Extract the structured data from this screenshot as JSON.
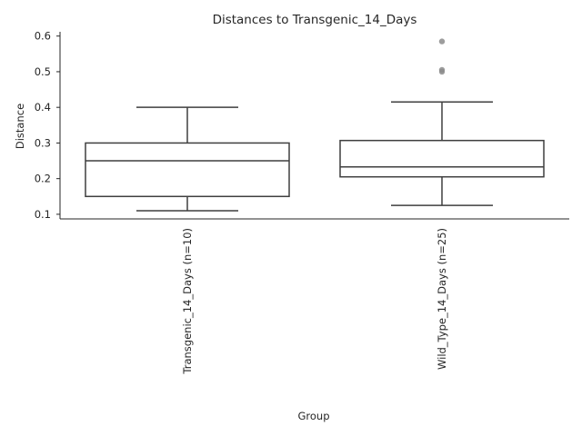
{
  "chart_data": {
    "type": "box",
    "title": "Distances to Transgenic_14_Days",
    "xlabel": "Group",
    "ylabel": "Distance",
    "ylim": [
      0.087,
      0.612
    ],
    "yticks": [
      "0.1",
      "0.2",
      "0.3",
      "0.4",
      "0.5",
      "0.6"
    ],
    "grid": false,
    "categories": [
      "Transgenic_14_Days (n=10)",
      "Wild_Type_14_Days (n=25)"
    ],
    "boxes": [
      {
        "whisker_low": 0.11,
        "q1": 0.15,
        "median": 0.25,
        "q3": 0.3,
        "whisker_high": 0.4,
        "outliers": []
      },
      {
        "whisker_low": 0.125,
        "q1": 0.205,
        "median": 0.233,
        "q3": 0.307,
        "whisker_high": 0.415,
        "outliers": [
          0.585,
          0.505,
          0.5
        ]
      }
    ],
    "colors": {
      "line": "#3f3f3f",
      "outlier": "#8c8c8c",
      "axis": "#262626"
    }
  }
}
